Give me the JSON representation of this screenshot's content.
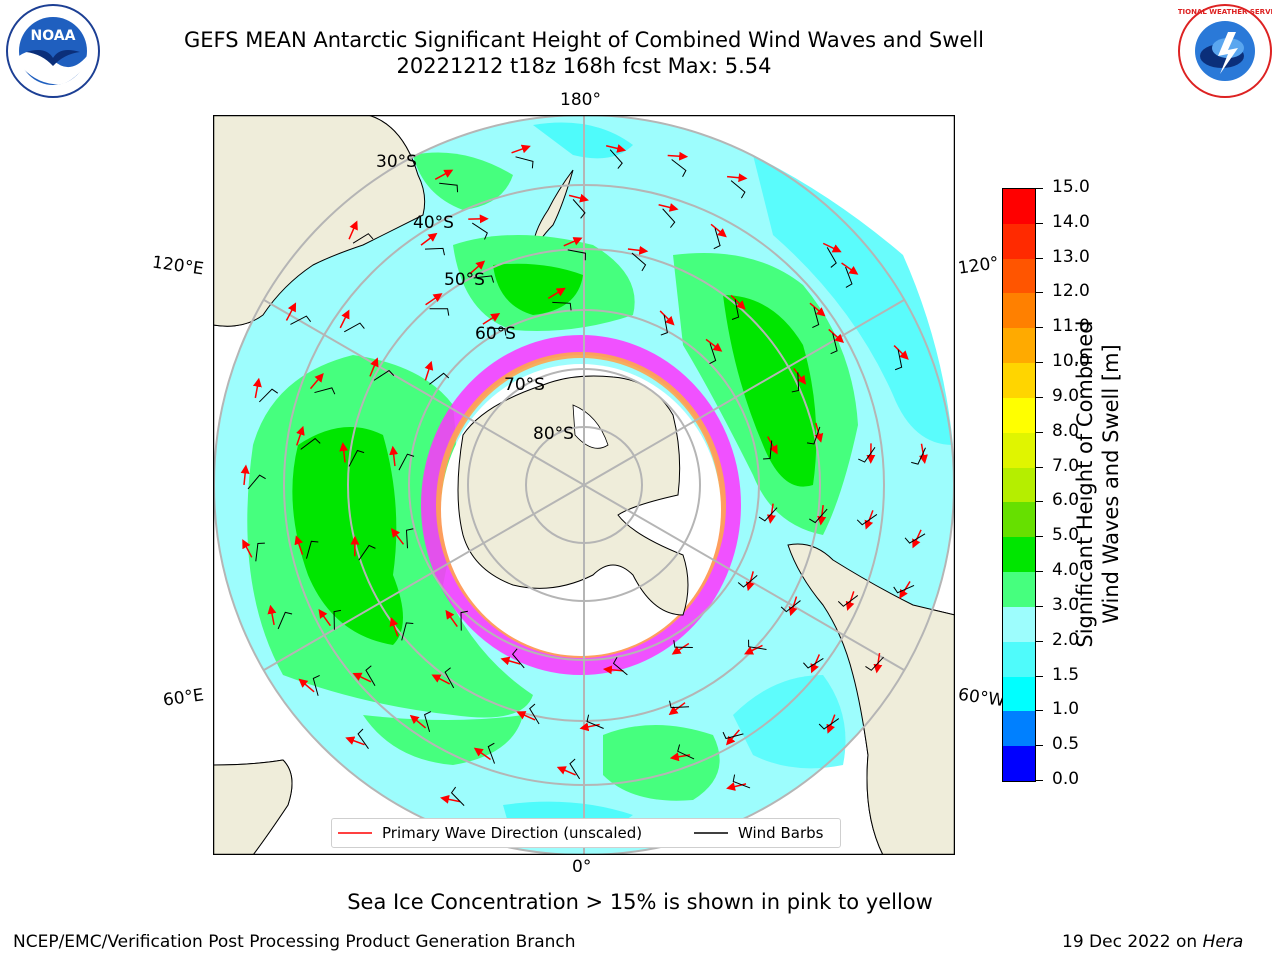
{
  "title": {
    "line1": "GEFS MEAN Antarctic Significant Height of Combined Wind Waves and Swell",
    "line2": "20221212 t18z 168h fcst   Max: 5.54"
  },
  "logos": {
    "left": "NOAA",
    "right": "NATIONAL WEATHER SERVICE"
  },
  "map": {
    "projection": "south-polar-stereographic",
    "longitude_labels": {
      "top": "180°",
      "bottom": "0°",
      "upper_left": "120°E",
      "lower_left": "60°E",
      "upper_right": "120°",
      "lower_right": "60°W"
    },
    "latitude_labels": [
      "30°S",
      "40°S",
      "50°S",
      "60°S",
      "70°S",
      "80°S"
    ],
    "colors": {
      "ocean_low": "#00ffff",
      "ocean_mid": "#9dfdfd",
      "ocean_high": "#46ff7e",
      "ocean_peak": "#00e600",
      "land": "#efedda",
      "ice_edge": "#ff33ff",
      "arrow": "#ff0000",
      "barb": "#000000"
    }
  },
  "legend": {
    "primary_wave": "Primary Wave Direction (unscaled)",
    "wind_barbs": "Wind Barbs"
  },
  "colorbar": {
    "label_line1": "Significant Height of Combined",
    "label_line2": "Wind Waves and Swell [m]",
    "ticks": [
      "15.0",
      "14.0",
      "13.0",
      "12.0",
      "11.0",
      "10.0",
      "9.0",
      "8.0",
      "7.0",
      "6.0",
      "5.0",
      "4.0",
      "3.0",
      "2.0",
      "1.5",
      "1.0",
      "0.5",
      "0.0"
    ],
    "colors": [
      "#ff0000",
      "#ff2a00",
      "#ff5500",
      "#ff8000",
      "#ffaa00",
      "#ffd500",
      "#ffff00",
      "#e0f500",
      "#b5ee00",
      "#66e000",
      "#00e600",
      "#46ff7e",
      "#9dfdfd",
      "#4ffbfb",
      "#00ffff",
      "#0080ff",
      "#0000ff"
    ]
  },
  "subtitle": "Sea Ice Concentration > 15% is shown in pink to yellow",
  "footer": {
    "left": "NCEP/EMC/Verification Post Processing Product Generation Branch",
    "right_date": "19 Dec 2022 on ",
    "right_host": "Hera"
  }
}
